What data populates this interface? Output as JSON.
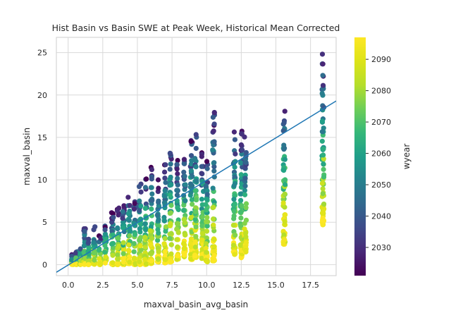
{
  "chart_data": {
    "type": "scatter",
    "title": "Hist Basin vs Basin SWE at Peak Week, Historical Mean Corrected",
    "xlabel": "maxval_basin_avg_basin",
    "ylabel": "maxval_basin",
    "xlim": [
      -0.85,
      19.35
    ],
    "ylim": [
      -1.3,
      26.8
    ],
    "xticks": [
      0.0,
      2.5,
      5.0,
      7.5,
      10.0,
      12.5,
      15.0,
      17.5
    ],
    "xtick_labels": [
      "0.0",
      "2.5",
      "5.0",
      "7.5",
      "10.0",
      "12.5",
      "15.0",
      "17.5"
    ],
    "yticks": [
      0,
      5,
      10,
      15,
      20,
      25
    ],
    "ytick_labels": [
      "0",
      "5",
      "10",
      "15",
      "20",
      "25"
    ],
    "grid": true,
    "colorbar": {
      "label": "wyear",
      "colormap": "viridis",
      "range": [
        2021,
        2097
      ],
      "ticks": [
        2030,
        2040,
        2050,
        2060,
        2070,
        2080,
        2090
      ],
      "tick_labels": [
        "2030",
        "2040",
        "2050",
        "2060",
        "2070",
        "2080",
        "2090"
      ]
    },
    "regression_line": {
      "color": "#1f77b4",
      "points": [
        [
          -0.85,
          -0.9
        ],
        [
          19.35,
          19.3
        ]
      ]
    },
    "point_columns": [
      {
        "x": 0.3,
        "ymin": 0.0,
        "ymax": 1.2
      },
      {
        "x": 0.6,
        "ymin": 0.0,
        "ymax": 1.6
      },
      {
        "x": 0.9,
        "ymin": 0.0,
        "ymax": 2.2
      },
      {
        "x": 1.2,
        "ymin": 0.0,
        "ymax": 4.3
      },
      {
        "x": 1.5,
        "ymin": 0.0,
        "ymax": 3.2
      },
      {
        "x": 1.9,
        "ymin": 0.0,
        "ymax": 4.5
      },
      {
        "x": 2.3,
        "ymin": 0.0,
        "ymax": 3.4
      },
      {
        "x": 2.7,
        "ymin": 0.1,
        "ymax": 4.8
      },
      {
        "x": 3.2,
        "ymin": 0.0,
        "ymax": 6.3
      },
      {
        "x": 3.6,
        "ymin": 0.0,
        "ymax": 6.8
      },
      {
        "x": 4.0,
        "ymin": 0.0,
        "ymax": 7.2
      },
      {
        "x": 4.4,
        "ymin": 0.1,
        "ymax": 8.2
      },
      {
        "x": 4.8,
        "ymin": 0.0,
        "ymax": 7.6
      },
      {
        "x": 5.2,
        "ymin": 0.0,
        "ymax": 9.7
      },
      {
        "x": 5.6,
        "ymin": 0.0,
        "ymax": 10.2
      },
      {
        "x": 6.0,
        "ymin": 0.1,
        "ymax": 11.5
      },
      {
        "x": 6.5,
        "ymin": 0.3,
        "ymax": 10.2
      },
      {
        "x": 7.0,
        "ymin": 0.2,
        "ymax": 12.0
      },
      {
        "x": 7.4,
        "ymin": 0.3,
        "ymax": 13.8
      },
      {
        "x": 7.9,
        "ymin": 0.6,
        "ymax": 12.3
      },
      {
        "x": 8.4,
        "ymin": 0.9,
        "ymax": 13.0
      },
      {
        "x": 8.9,
        "ymin": 0.6,
        "ymax": 15.3
      },
      {
        "x": 9.2,
        "ymin": 0.8,
        "ymax": 16.0
      },
      {
        "x": 9.7,
        "ymin": 0.7,
        "ymax": 13.5
      },
      {
        "x": 10.0,
        "ymin": 0.3,
        "ymax": 12.5
      },
      {
        "x": 10.5,
        "ymin": 0.4,
        "ymax": 18.0
      },
      {
        "x": 12.0,
        "ymin": 1.2,
        "ymax": 15.8
      },
      {
        "x": 12.5,
        "ymin": 0.8,
        "ymax": 15.8
      },
      {
        "x": 12.8,
        "ymin": 1.5,
        "ymax": 15.2
      },
      {
        "x": 15.6,
        "ymin": 2.4,
        "ymax": 19.9
      },
      {
        "x": 18.4,
        "ymin": 4.7,
        "ymax": 25.5
      }
    ]
  }
}
